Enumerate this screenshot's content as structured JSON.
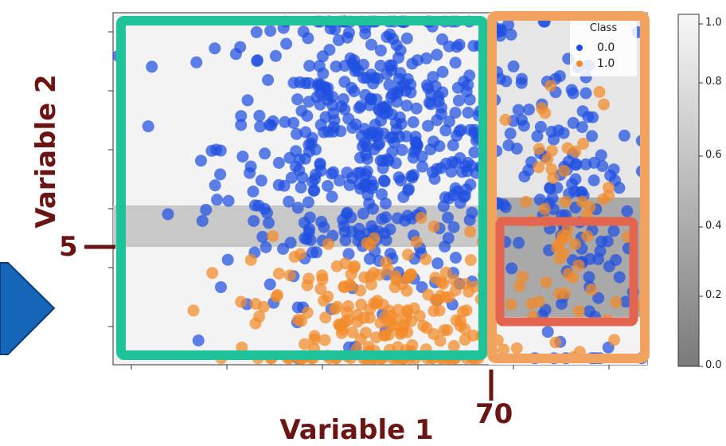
{
  "chart_data": {
    "type": "scatter",
    "xlabel": "Variable 1",
    "ylabel": "Variable 2",
    "legend": {
      "title": "Class",
      "placement": "top-right",
      "entries": [
        {
          "label": "0.0",
          "color": "#1f4fe0"
        },
        {
          "label": "1.0",
          "color": "#f28a2a"
        }
      ]
    },
    "series": [
      {
        "name": "0.0",
        "color": "#1f4fe0",
        "cluster_center": [
          50,
          10
        ],
        "cluster_spread": [
          15,
          3.5
        ]
      },
      {
        "name": "1.0",
        "color": "#f28a2a",
        "cluster_center": [
          50,
          2
        ],
        "cluster_spread": [
          12,
          2
        ]
      }
    ],
    "decision_regions": [
      {
        "x_range": [
          0,
          70
        ],
        "y_range": [
          4,
          6
        ],
        "prob": 0.7
      },
      {
        "x_range": [
          70,
          100
        ],
        "y_range": [
          0,
          6.5
        ],
        "prob": 0.4
      }
    ],
    "colorbar": {
      "ticks": [
        "0.0",
        "0.2",
        "0.4",
        "0.6",
        "0.8",
        "1.0"
      ]
    },
    "annotations": [
      {
        "text": "5",
        "axis": "y",
        "value": 5
      },
      {
        "text": "70",
        "axis": "x",
        "value": 70
      }
    ],
    "highlight_boxes": [
      {
        "color": "#1fc39a",
        "x_range": [
          0,
          70
        ]
      },
      {
        "color": "#f2a25f",
        "x_range": [
          70,
          100
        ]
      },
      {
        "color": "#e2664f",
        "x_range": [
          70,
          100
        ],
        "y_range": [
          0,
          5
        ]
      }
    ]
  }
}
